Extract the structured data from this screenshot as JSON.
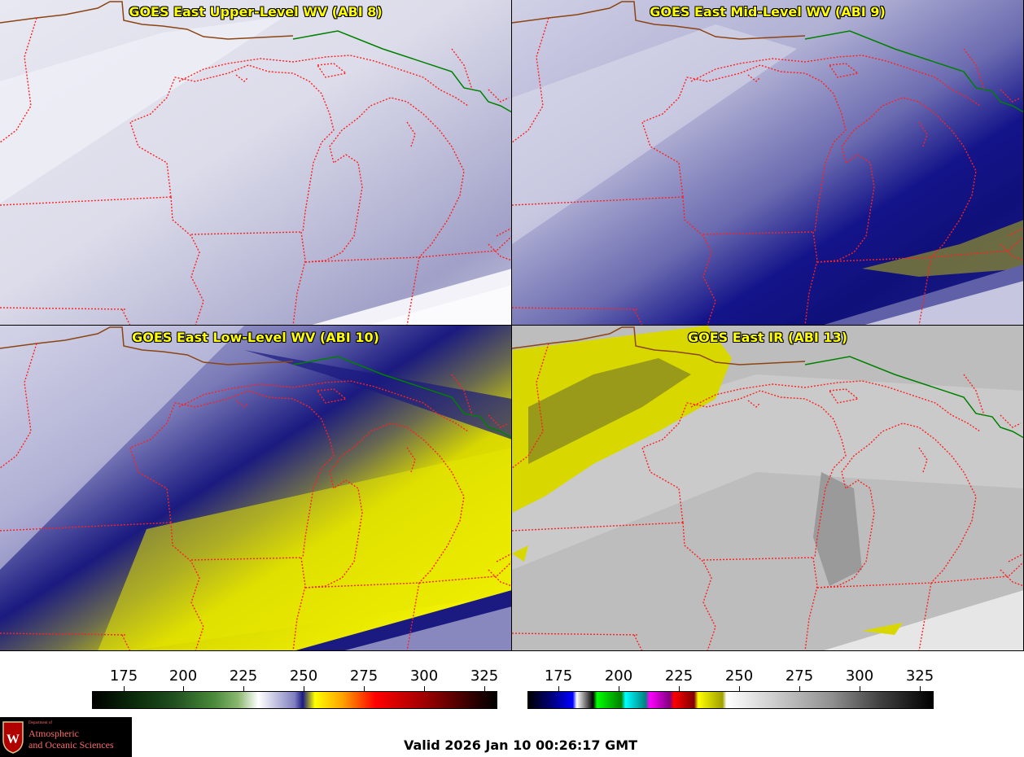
{
  "panels": {
    "upper_level_wv": {
      "title": "GOES East Upper-Level WV (ABI 8)"
    },
    "mid_level_wv": {
      "title": "GOES East Mid-Level WV (ABI 9)"
    },
    "low_level_wv": {
      "title": "GOES East Low-Level WV (ABI 10)"
    },
    "ir": {
      "title": "GOES East IR (ABI 13)"
    }
  },
  "colorbars": {
    "wv": {
      "ticks": [
        "175",
        "200",
        "225",
        "250",
        "275",
        "300",
        "325"
      ]
    },
    "ir": {
      "ticks": [
        "175",
        "200",
        "225",
        "250",
        "275",
        "300",
        "325"
      ]
    }
  },
  "logo": {
    "dept": "Department of",
    "line1": "Atmospheric",
    "line2": "and Oceanic Sciences",
    "colors": {
      "background": "#000000",
      "text": "#ff6a6a",
      "shield": "#b00000"
    }
  },
  "valid_time": "Valid 2026 Jan 10 00:26:17 GMT",
  "colors": {
    "title_text": "#ffff00",
    "state_borders": "#ff2020",
    "country_border": "#008000",
    "coast": "#8b4513"
  }
}
